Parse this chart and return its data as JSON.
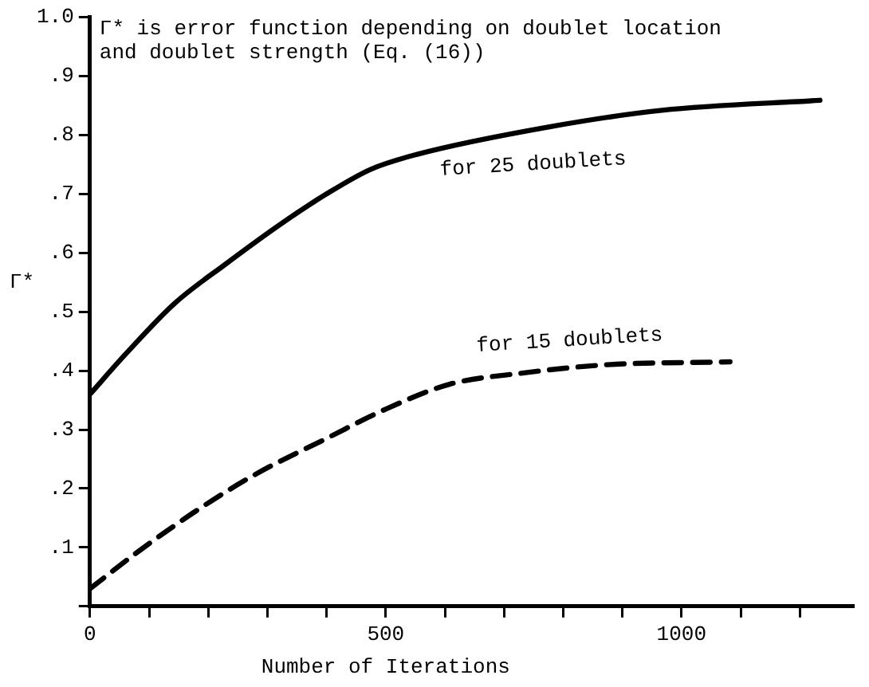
{
  "chart_data": {
    "type": "line",
    "xlabel": "Number of Iterations",
    "ylabel": "Γ*",
    "annotations": [
      "Γ* is error function depending on doublet location and doublet strength (Eq. (16))"
    ],
    "xlim": [
      0,
      1290
    ],
    "xticks": [
      0,
      {
        "value": 100,
        "label": null
      },
      {
        "value": 200,
        "label": null
      },
      {
        "value": 300,
        "label": null
      },
      {
        "value": 400,
        "label": null
      },
      500,
      {
        "value": 600,
        "label": null
      },
      {
        "value": 700,
        "label": null
      },
      {
        "value": 800,
        "label": null
      },
      {
        "value": 900,
        "label": null
      },
      1000,
      {
        "value": 1100,
        "label": null
      },
      {
        "value": 1200,
        "label": null
      }
    ],
    "ylim": [
      0,
      1.0
    ],
    "yticks": [
      {
        "value": 0,
        "label": null
      },
      {
        "value": 0.1,
        "label": ".1"
      },
      {
        "value": 0.2,
        "label": ".2"
      },
      {
        "value": 0.3,
        "label": ".3"
      },
      {
        "value": 0.4,
        "label": ".4"
      },
      {
        "value": 0.5,
        "label": ".5"
      },
      {
        "value": 0.6,
        "label": ".6"
      },
      {
        "value": 0.7,
        "label": ".7"
      },
      {
        "value": 0.8,
        "label": ".8"
      },
      {
        "value": 0.9,
        "label": ".9"
      },
      {
        "value": 1.0,
        "label": "1.0"
      }
    ],
    "grid": false,
    "legend": false,
    "marker": "none",
    "series": [
      {
        "name": "for 25 doublets",
        "color": "#000000",
        "line_style": "solid",
        "x": [
          0,
          62,
          144,
          228,
          324,
          400,
          475,
          552,
          777,
          967,
          1234
        ],
        "values": [
          0.36,
          0.43,
          0.515,
          0.58,
          0.65,
          0.7,
          0.742,
          0.767,
          0.814,
          0.842,
          0.859
        ]
      },
      {
        "name": "for 15 doublets",
        "color": "#000000",
        "line_style": "dashed",
        "x": [
          0,
          87,
          190,
          285,
          400,
          494,
          608,
          731,
          872,
          1082
        ],
        "values": [
          0.03,
          0.097,
          0.169,
          0.227,
          0.285,
          0.332,
          0.377,
          0.396,
          0.41,
          0.415
        ]
      }
    ]
  }
}
